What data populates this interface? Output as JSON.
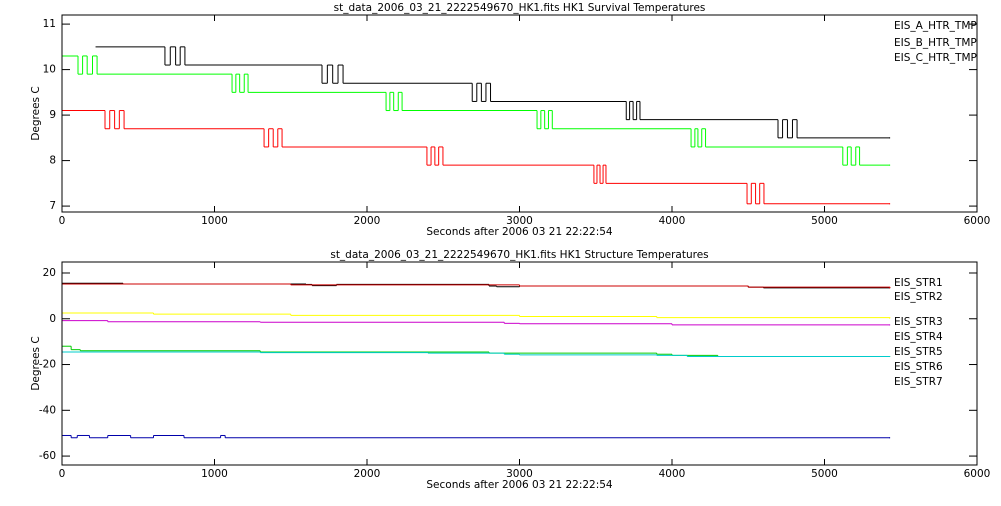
{
  "chart_data": [
    {
      "type": "line",
      "step": true,
      "title": "st_data_2006_03_21_2222549670_HK1.fits HK1 Survival Temperatures",
      "x_label": "Seconds after 2006 03 21 22:22:54",
      "y_label": "Degrees C",
      "xlim": [
        0,
        6000
      ],
      "xticks": [
        0,
        1000,
        2000,
        3000,
        4000,
        5000,
        6000
      ],
      "ylim": [
        6.87,
        11.2
      ],
      "yticks": [
        7,
        8,
        9,
        10,
        11
      ],
      "legend": "upper right",
      "series": [
        {
          "name": "EIS_A_HTR_TMP",
          "color": "#000000",
          "x": [
            220,
            675,
            710,
            745,
            775,
            806,
            1705,
            1740,
            1775,
            1810,
            1843,
            2690,
            2720,
            2750,
            2780,
            2810,
            3700,
            3722,
            3745,
            3768,
            3790,
            4695,
            4725,
            4757,
            4790,
            4820,
            5430
          ],
          "values": [
            10.5,
            10.1,
            10.5,
            10.1,
            10.5,
            10.1,
            9.7,
            10.1,
            9.7,
            10.1,
            9.7,
            9.3,
            9.7,
            9.3,
            9.7,
            9.3,
            8.9,
            9.3,
            8.9,
            9.3,
            8.9,
            8.5,
            8.9,
            8.5,
            8.9,
            8.5,
            8.5
          ]
        },
        {
          "name": "EIS_B_HTR_TMP",
          "color": "#ff0000",
          "x": [
            0,
            282,
            313,
            345,
            376,
            407,
            1325,
            1355,
            1385,
            1415,
            1443,
            2393,
            2420,
            2445,
            2470,
            2498,
            3488,
            3508,
            3528,
            3548,
            3567,
            4492,
            4520,
            4548,
            4575,
            4603,
            5430
          ],
          "values": [
            9.1,
            8.7,
            9.1,
            8.7,
            9.1,
            8.7,
            8.3,
            8.7,
            8.3,
            8.7,
            8.3,
            7.9,
            8.3,
            7.9,
            8.3,
            7.9,
            7.5,
            7.9,
            7.5,
            7.9,
            7.5,
            7.05,
            7.5,
            7.05,
            7.5,
            7.05,
            7.05
          ]
        },
        {
          "name": "EIS_C_HTR_TMP",
          "color": "#00ff00",
          "x": [
            0,
            105,
            135,
            165,
            200,
            230,
            1115,
            1140,
            1165,
            1195,
            1220,
            2125,
            2150,
            2175,
            2205,
            2230,
            3115,
            3140,
            3165,
            3190,
            3215,
            4125,
            4150,
            4170,
            4195,
            4220,
            5120,
            5150,
            5175,
            5205,
            5230,
            5430
          ],
          "values": [
            10.3,
            9.9,
            10.3,
            9.9,
            10.3,
            9.9,
            9.5,
            9.9,
            9.5,
            9.9,
            9.5,
            9.1,
            9.5,
            9.1,
            9.5,
            9.1,
            8.7,
            9.1,
            8.7,
            9.1,
            8.7,
            8.3,
            8.7,
            8.3,
            8.7,
            8.3,
            7.9,
            8.3,
            7.9,
            8.3,
            7.9,
            7.9
          ]
        }
      ]
    },
    {
      "type": "line",
      "step": true,
      "title": "st_data_2006_03_21_2222549670_HK1.fits HK1 Structure Temperatures",
      "x_label": "Seconds after 2006 03 21 22:22:54",
      "y_label": "Degrees C",
      "xlim": [
        0,
        6000
      ],
      "xticks": [
        0,
        1000,
        2000,
        3000,
        4000,
        5000,
        6000
      ],
      "ylim": [
        -63.9,
        24.8
      ],
      "yticks": [
        -60,
        -40,
        -20,
        0,
        20
      ],
      "legend": "upper right",
      "series": [
        {
          "name": "EIS_STR1",
          "color": "#000000",
          "x": [
            0,
            400,
            1600,
            1640,
            1800,
            2800,
            2850,
            3000,
            4500,
            4600,
            5430
          ],
          "values": [
            15.5,
            15.2,
            15,
            14.5,
            15,
            14.3,
            14,
            14.3,
            13.8,
            13.5,
            13.5
          ]
        },
        {
          "name": "EIS_STR2",
          "color": "#cc0000",
          "x": [
            0,
            1500,
            3000,
            4500,
            5430
          ],
          "values": [
            15.2,
            14.8,
            14.3,
            13.8,
            13.5
          ]
        },
        {
          "name": "EIS_STR3",
          "color": "#00cc00",
          "x": [
            0,
            60,
            120,
            1300,
            2800,
            3900,
            4000,
            4300,
            5430
          ],
          "values": [
            -12,
            -13.5,
            -14,
            -14.5,
            -15,
            -15.5,
            -16,
            -16.5,
            -16.5
          ]
        },
        {
          "name": "EIS_STR4",
          "color": "#0000aa",
          "x": [
            0,
            60,
            100,
            180,
            300,
            450,
            600,
            800,
            1040,
            1070,
            5430
          ],
          "values": [
            -51,
            -52,
            -51,
            -52,
            -51,
            -52,
            -51,
            -52,
            -51,
            -52,
            -52
          ]
        },
        {
          "name": "EIS_STR5",
          "color": "#00cccc",
          "x": [
            0,
            1300,
            2400,
            2900,
            3000,
            3900,
            4100,
            5430
          ],
          "values": [
            -14.5,
            -14.8,
            -15,
            -15.5,
            -15.8,
            -16,
            -16.5,
            -16.5
          ]
        },
        {
          "name": "EIS_STR6",
          "color": "#cc00cc",
          "x": [
            0,
            300,
            1300,
            2900,
            3000,
            4000,
            5430
          ],
          "values": [
            -0.8,
            -1.3,
            -1.5,
            -2,
            -2.2,
            -2.7,
            -2.7
          ]
        },
        {
          "name": "EIS_STR7",
          "color": "#ffff00",
          "x": [
            0,
            600,
            1500,
            3000,
            3900,
            5430
          ],
          "values": [
            2.5,
            2,
            1.5,
            1,
            0.5,
            0.3
          ]
        }
      ]
    }
  ]
}
